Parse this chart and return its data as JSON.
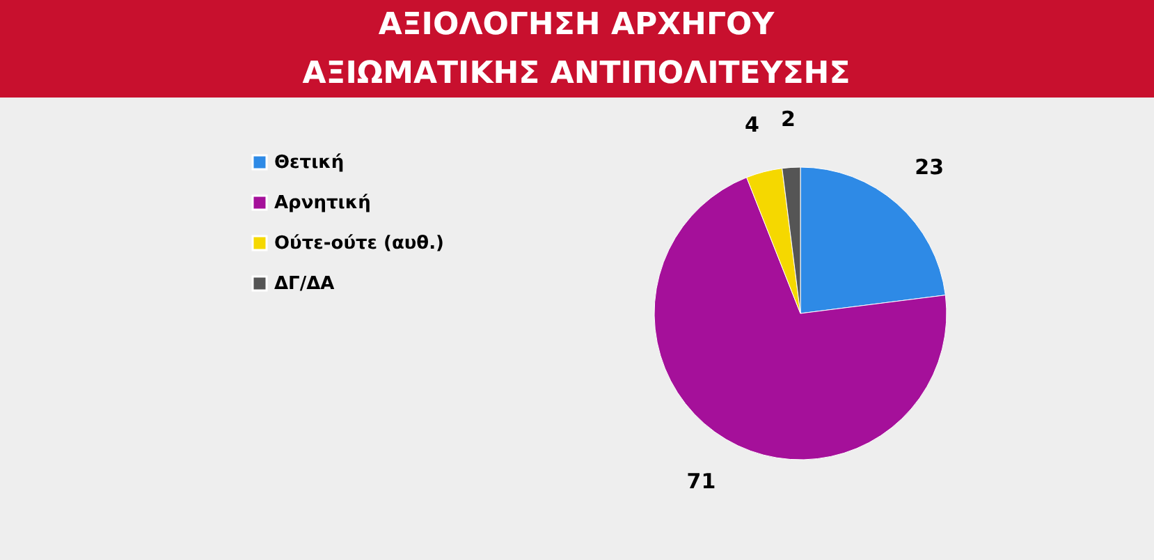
{
  "chart_data": {
    "type": "pie",
    "title": "ΑΞΙΟΛΟΓΗΣΗ ΑΡΧΗΓΟΥ\nΑΞΙΩΜΑΤΙΚΗΣ ΑΝΤΙΠΟΛΙΤΕΥΣΗΣ",
    "categories": [
      "Θετική",
      "Αρνητική",
      "Ούτε-ούτε (αυθ.)",
      "ΔΓ/ΔΑ"
    ],
    "values": [
      23,
      71,
      4,
      2
    ],
    "colors": [
      "#2e8ae6",
      "#a5109a",
      "#f5d800",
      "#555555"
    ],
    "data_labels": true,
    "legend": "left"
  }
}
